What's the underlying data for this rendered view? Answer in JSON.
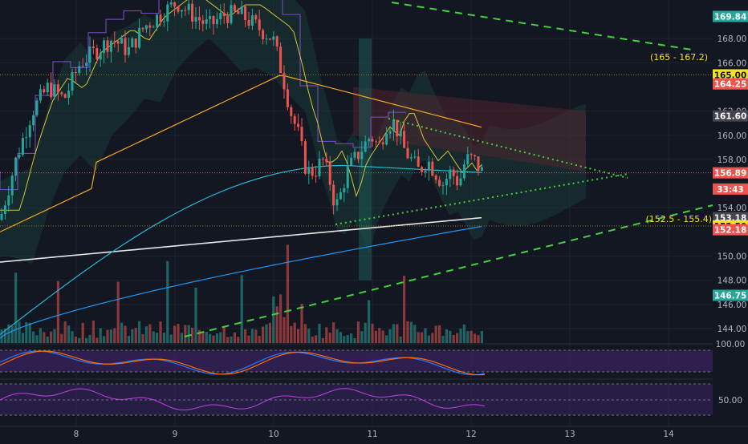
{
  "chart_data": {
    "type": "candlestick",
    "colors": {
      "background": "#131722",
      "up": "#26a69a",
      "down": "#ef5350",
      "grid": "#1e222d",
      "axis_text": "#b2b5be",
      "trend_dashed": "#43d13f",
      "trend_dotted": "#43d13f",
      "ma_white": "#e8e8e8",
      "ma_blue": "#2196f3",
      "ma_cyan": "#29b6d6",
      "ma_orange": "#f5a623",
      "ma_yellow": "#d4c33b",
      "stoch_bg": "#3a2463",
      "rsi_line": "#b03fd6",
      "stoch_k": "#2979ff",
      "stoch_d": "#ff6d00",
      "level_yellow": "#f3e21f"
    },
    "x_axis": {
      "ticks": [
        "8",
        "9",
        "10",
        "11",
        "12",
        "13",
        "14"
      ]
    },
    "price_axis": {
      "ylim": [
        142.8,
        171.2
      ],
      "ticks": [
        "168.00",
        "166.00",
        "162.00",
        "160.00",
        "158.00",
        "154.00",
        "150.00",
        "148.00",
        "146.00",
        "144.00"
      ]
    },
    "price_labels": [
      {
        "value": 169.84,
        "text": "169.84",
        "bg": "#26a69a",
        "fg": "#ffffff"
      },
      {
        "value": 165.0,
        "text": "165.00",
        "bg": "#f3e21f",
        "fg": "#131722"
      },
      {
        "value": 164.25,
        "text": "164.25",
        "bg": "#ef5350",
        "fg": "#ffffff"
      },
      {
        "value": 161.6,
        "text": "161.60",
        "bg": "#434651",
        "fg": "#ffffff"
      },
      {
        "value": 156.89,
        "text": "156.89",
        "bg": "#ef5350",
        "fg": "#ffffff"
      },
      {
        "value": 155.55,
        "text": "33:43",
        "bg": "#ef5350",
        "fg": "#ffffff"
      },
      {
        "value": 153.18,
        "text": "153.18",
        "bg": "#434651",
        "fg": "#ffffff"
      },
      {
        "value": 152.5,
        "text": "152.50",
        "bg": "#f3e21f",
        "fg": "#131722"
      },
      {
        "value": 152.18,
        "text": "152.18",
        "bg": "#ef5350",
        "fg": "#ffffff"
      },
      {
        "value": 146.75,
        "text": "146.75",
        "bg": "#26a69a",
        "fg": "#ffffff"
      }
    ],
    "annotations": [
      {
        "text": "(165 - 167.2)",
        "y": 166.5
      },
      {
        "text": "(152.5 - 155.4)",
        "y": 153.1
      }
    ],
    "horizontal_lines": [
      165.0,
      156.89,
      152.5
    ],
    "last_price": 156.89,
    "stoch_axis": {
      "ticks": [
        "100.00"
      ]
    },
    "rsi_axis": {
      "ticks": [
        "50.00"
      ]
    }
  }
}
